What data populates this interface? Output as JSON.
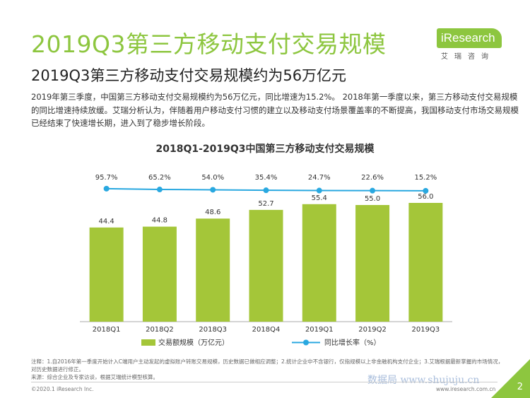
{
  "header": {
    "main_title": "2019Q3第三方移动支付交易规模",
    "sub_title": "2019Q3第三方移动支付交易规模约为56万亿元",
    "summary": "2019年第三季度，中国第三方移动支付交易规模约为56万亿元，同比增速为15.2%。 2018年第一季度以来，第三方移动支付交易规模的同比增速持续放缓。艾瑞分析认为，伴随着用户移动支付习惯的建立以及移动支付场景覆盖率的不断提高，我国移动支付市场交易规模已经结束了快速增长期，进入到了稳步增长阶段。"
  },
  "logo": {
    "text": "iResearch",
    "sub": "艾瑞咨询"
  },
  "chart_data": {
    "type": "bar",
    "title": "2018Q1-2019Q3中国第三方移动支付交易规模",
    "categories": [
      "2018Q1",
      "2018Q2",
      "2018Q3",
      "2018Q4",
      "2019Q1",
      "2019Q2",
      "2019Q3"
    ],
    "series": [
      {
        "name": "交易额规模（万亿元）",
        "type": "bar",
        "values": [
          44.4,
          44.8,
          48.6,
          52.7,
          55.4,
          55.0,
          56.0
        ],
        "labels": [
          "44.4",
          "44.8",
          "48.6",
          "52.7",
          "55.4",
          "55.0",
          "56.0"
        ],
        "color": "#a4c639"
      },
      {
        "name": "同比增长率（%）",
        "type": "line",
        "values": [
          95.7,
          65.2,
          54.0,
          35.4,
          24.7,
          22.6,
          15.2
        ],
        "labels": [
          "95.7%",
          "65.2%",
          "54.0%",
          "35.4%",
          "24.7%",
          "22.6%",
          "15.2%"
        ],
        "color": "#29a8e0"
      }
    ],
    "legend_position": "bottom",
    "grid": false
  },
  "notes": {
    "line1": "注释：1.自2016年第一季度开始计入C端用户主动发起的虚拟账户转账交易规模，历史数据已做相应调整；2.统计企业中不含银行，仅指规模以上非金融机构支付企业；3.艾瑞根据最新掌握的市场情况，对历史数据进行修正。",
    "line2": "来源：综合企业及专家访谈，根据艾瑞统计模型核算。"
  },
  "footer": {
    "copyright": "©2020.1 iResearch Inc.",
    "website": "www.iresearch.com.cn",
    "page": "2",
    "watermark": "数据局 www.shujuju.cn"
  }
}
